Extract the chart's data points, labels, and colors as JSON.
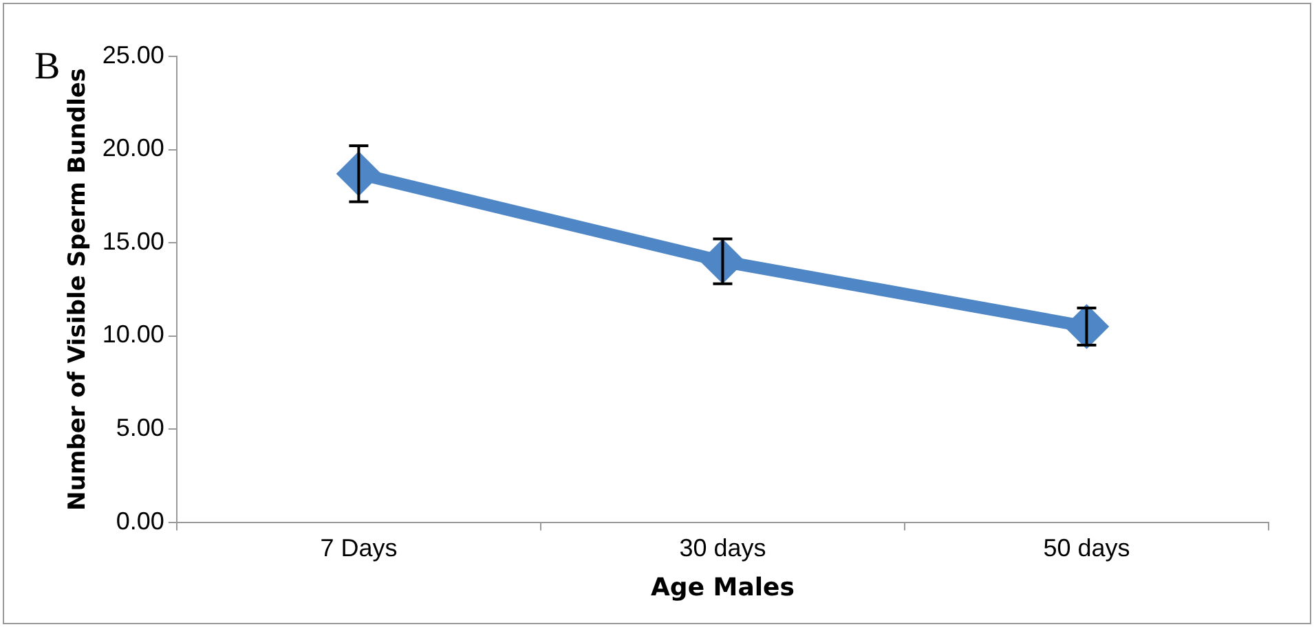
{
  "chart_data": {
    "type": "line",
    "xlabel": "Age Males",
    "ylabel": "Number of Visible Sperm Bundles",
    "annotations": [
      "B"
    ],
    "categories": [
      "7 Days",
      "30 days",
      "50 days"
    ],
    "series": [
      {
        "color": "#4f86c6",
        "values": [
          18.7,
          14.0,
          10.5
        ],
        "errors": [
          1.5,
          1.2,
          1.0
        ]
      }
    ],
    "ylim": [
      0,
      25
    ],
    "yticks": [
      {
        "value": 0,
        "label": "0.00"
      },
      {
        "value": 5,
        "label": "5.00"
      },
      {
        "value": 10,
        "label": "10.00"
      },
      {
        "value": 15,
        "label": "15.00"
      },
      {
        "value": 20,
        "label": "20.00"
      },
      {
        "value": 25,
        "label": "25.00"
      }
    ],
    "grid": false,
    "legend": false,
    "marker": "diamond",
    "line_style": "solid"
  }
}
